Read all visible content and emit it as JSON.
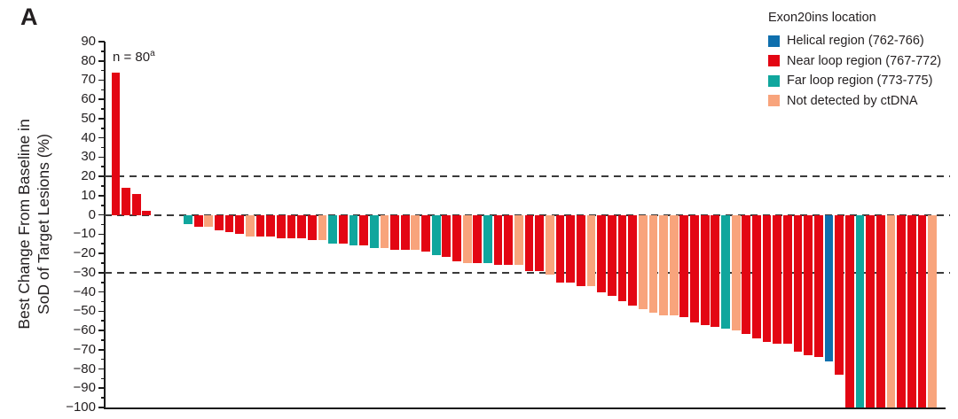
{
  "panel_label": "A",
  "annotation": {
    "text": "n = 80",
    "sup": "a"
  },
  "legend": {
    "title": "Exon20ins location",
    "items": [
      {
        "key": "helical",
        "label": "Helical region (762-766)",
        "color": "#0f6fad"
      },
      {
        "key": "near_loop",
        "label": "Near loop region (767-772)",
        "color": "#e30613"
      },
      {
        "key": "far_loop",
        "label": "Far loop region (773-775)",
        "color": "#10a69d"
      },
      {
        "key": "not_detected",
        "label": "Not detected by ctDNA",
        "color": "#f8a47c"
      }
    ]
  },
  "chart_data": {
    "type": "bar",
    "title": "",
    "xlabel": "",
    "ylabel": "Best Change From Baseline in\nSoD of Target Lesions (%)",
    "ylim": [
      -100,
      90
    ],
    "y_tick_step": 10,
    "y_minor_tick_step": 5,
    "y_ticks": [
      90,
      80,
      70,
      60,
      50,
      40,
      30,
      20,
      10,
      0,
      -10,
      -20,
      -30,
      -40,
      -50,
      -60,
      -70,
      -80,
      -90,
      -100
    ],
    "reference_lines": [
      20,
      0,
      -30
    ],
    "grid": false,
    "legend_position": "top-right",
    "axis_color": "#1a1a1a",
    "reference_line_color": "#3a3a3a",
    "bars": [
      {
        "value": 74,
        "group": "near_loop"
      },
      {
        "value": 14,
        "group": "near_loop"
      },
      {
        "value": 11,
        "group": "near_loop"
      },
      {
        "value": 2,
        "group": "near_loop"
      },
      {
        "value": 0,
        "group": "near_loop"
      },
      {
        "value": 0,
        "group": "near_loop"
      },
      {
        "value": 0,
        "group": "near_loop"
      },
      {
        "value": -5,
        "group": "far_loop"
      },
      {
        "value": -6,
        "group": "near_loop"
      },
      {
        "value": -6,
        "group": "not_detected"
      },
      {
        "value": -8,
        "group": "near_loop"
      },
      {
        "value": -9,
        "group": "near_loop"
      },
      {
        "value": -10,
        "group": "near_loop"
      },
      {
        "value": -11,
        "group": "not_detected"
      },
      {
        "value": -11,
        "group": "near_loop"
      },
      {
        "value": -11,
        "group": "near_loop"
      },
      {
        "value": -12,
        "group": "near_loop"
      },
      {
        "value": -12,
        "group": "near_loop"
      },
      {
        "value": -12,
        "group": "near_loop"
      },
      {
        "value": -13,
        "group": "near_loop"
      },
      {
        "value": -13,
        "group": "not_detected"
      },
      {
        "value": -15,
        "group": "far_loop"
      },
      {
        "value": -15,
        "group": "near_loop"
      },
      {
        "value": -16,
        "group": "far_loop"
      },
      {
        "value": -16,
        "group": "near_loop"
      },
      {
        "value": -17,
        "group": "far_loop"
      },
      {
        "value": -17,
        "group": "not_detected"
      },
      {
        "value": -18,
        "group": "near_loop"
      },
      {
        "value": -18,
        "group": "near_loop"
      },
      {
        "value": -18,
        "group": "not_detected"
      },
      {
        "value": -19,
        "group": "near_loop"
      },
      {
        "value": -21,
        "group": "far_loop"
      },
      {
        "value": -22,
        "group": "near_loop"
      },
      {
        "value": -24,
        "group": "near_loop"
      },
      {
        "value": -25,
        "group": "not_detected"
      },
      {
        "value": -25,
        "group": "near_loop"
      },
      {
        "value": -25,
        "group": "far_loop"
      },
      {
        "value": -26,
        "group": "near_loop"
      },
      {
        "value": -26,
        "group": "near_loop"
      },
      {
        "value": -26,
        "group": "not_detected"
      },
      {
        "value": -29,
        "group": "near_loop"
      },
      {
        "value": -29,
        "group": "near_loop"
      },
      {
        "value": -31,
        "group": "not_detected"
      },
      {
        "value": -35,
        "group": "near_loop"
      },
      {
        "value": -35,
        "group": "near_loop"
      },
      {
        "value": -37,
        "group": "near_loop"
      },
      {
        "value": -37,
        "group": "not_detected"
      },
      {
        "value": -40,
        "group": "near_loop"
      },
      {
        "value": -42,
        "group": "near_loop"
      },
      {
        "value": -45,
        "group": "near_loop"
      },
      {
        "value": -47,
        "group": "near_loop"
      },
      {
        "value": -49,
        "group": "not_detected"
      },
      {
        "value": -51,
        "group": "not_detected"
      },
      {
        "value": -52,
        "group": "not_detected"
      },
      {
        "value": -52,
        "group": "not_detected"
      },
      {
        "value": -53,
        "group": "near_loop"
      },
      {
        "value": -56,
        "group": "near_loop"
      },
      {
        "value": -57,
        "group": "near_loop"
      },
      {
        "value": -58,
        "group": "near_loop"
      },
      {
        "value": -59,
        "group": "far_loop"
      },
      {
        "value": -60,
        "group": "not_detected"
      },
      {
        "value": -62,
        "group": "near_loop"
      },
      {
        "value": -64,
        "group": "near_loop"
      },
      {
        "value": -66,
        "group": "near_loop"
      },
      {
        "value": -67,
        "group": "near_loop"
      },
      {
        "value": -67,
        "group": "near_loop"
      },
      {
        "value": -71,
        "group": "near_loop"
      },
      {
        "value": -73,
        "group": "near_loop"
      },
      {
        "value": -74,
        "group": "near_loop"
      },
      {
        "value": -76,
        "group": "helical"
      },
      {
        "value": -83,
        "group": "near_loop"
      },
      {
        "value": -100,
        "group": "near_loop"
      },
      {
        "value": -100,
        "group": "far_loop"
      },
      {
        "value": -100,
        "group": "near_loop"
      },
      {
        "value": -100,
        "group": "near_loop"
      },
      {
        "value": -100,
        "group": "not_detected"
      },
      {
        "value": -100,
        "group": "near_loop"
      },
      {
        "value": -100,
        "group": "near_loop"
      },
      {
        "value": -100,
        "group": "near_loop"
      },
      {
        "value": -100,
        "group": "not_detected"
      }
    ]
  }
}
